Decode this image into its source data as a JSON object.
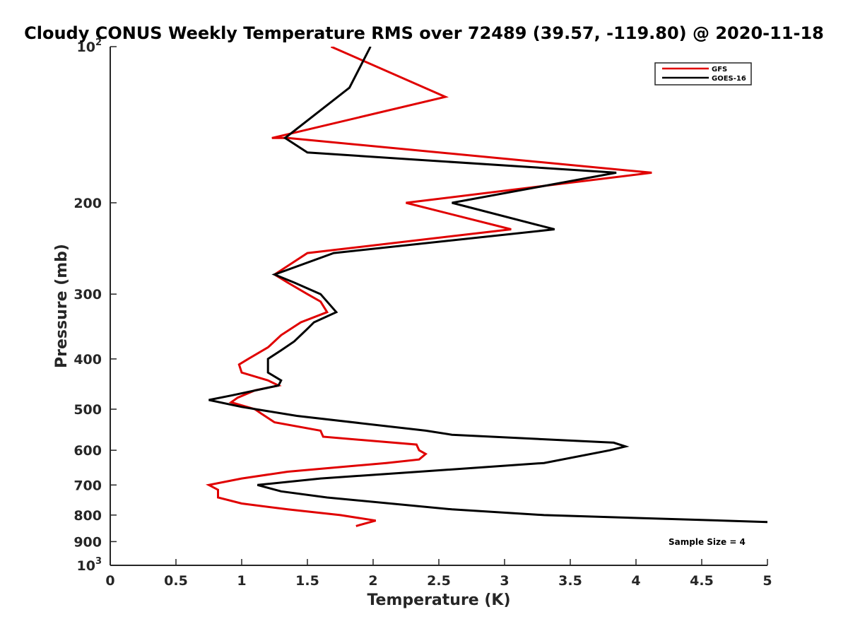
{
  "chart_data": {
    "type": "line",
    "title": "Cloudy CONUS Weekly Temperature RMS over 72489 (39.57, -119.80) @ 2020-11-18",
    "xlabel": "Temperature (K)",
    "ylabel": "Pressure (mb)",
    "xlim": [
      0,
      5
    ],
    "ylim": [
      100,
      1000
    ],
    "y_scale": "log",
    "y_reversed": true,
    "x_ticks": [
      "0",
      "0.5",
      "1",
      "1.5",
      "2",
      "2.5",
      "3",
      "3.5",
      "4",
      "4.5",
      "5"
    ],
    "x_tick_values": [
      0,
      0.5,
      1,
      1.5,
      2,
      2.5,
      3,
      3.5,
      4,
      4.5,
      5
    ],
    "y_ticks": [
      {
        "value": 100,
        "base": "10",
        "exp": "2"
      },
      {
        "value": 200,
        "label": "200"
      },
      {
        "value": 300,
        "label": "300"
      },
      {
        "value": 400,
        "label": "400"
      },
      {
        "value": 500,
        "label": "500"
      },
      {
        "value": 600,
        "label": "600"
      },
      {
        "value": 700,
        "label": "700"
      },
      {
        "value": 800,
        "label": "800"
      },
      {
        "value": 900,
        "label": "900"
      },
      {
        "value": 1000,
        "base": "10",
        "exp": "3"
      }
    ],
    "legend_position": "top-right",
    "annotation": "Sample Size = 4",
    "grid": false,
    "series": [
      {
        "name": "GFS",
        "color": "#e00000",
        "points": [
          [
            1.68,
            100
          ],
          [
            2.55,
            125
          ],
          [
            1.23,
            150
          ],
          [
            1.35,
            150
          ],
          [
            4.12,
            175
          ],
          [
            2.25,
            200
          ],
          [
            3.05,
            225
          ],
          [
            1.5,
            250
          ],
          [
            1.25,
            275
          ],
          [
            1.35,
            285
          ],
          [
            1.5,
            300
          ],
          [
            1.6,
            310
          ],
          [
            1.65,
            325
          ],
          [
            1.45,
            340
          ],
          [
            1.3,
            360
          ],
          [
            1.2,
            380
          ],
          [
            1.05,
            400
          ],
          [
            0.98,
            410
          ],
          [
            1.0,
            425
          ],
          [
            1.2,
            440
          ],
          [
            1.28,
            450
          ],
          [
            1.1,
            460
          ],
          [
            0.97,
            475
          ],
          [
            0.92,
            485
          ],
          [
            1.1,
            500
          ],
          [
            1.15,
            510
          ],
          [
            1.25,
            530
          ],
          [
            1.6,
            550
          ],
          [
            1.62,
            565
          ],
          [
            2.33,
            585
          ],
          [
            2.35,
            600
          ],
          [
            2.4,
            610
          ],
          [
            2.35,
            625
          ],
          [
            2.1,
            635
          ],
          [
            1.35,
            660
          ],
          [
            1.0,
            680
          ],
          [
            0.75,
            700
          ],
          [
            0.82,
            715
          ],
          [
            0.82,
            740
          ],
          [
            1.0,
            760
          ],
          [
            1.35,
            780
          ],
          [
            1.75,
            800
          ],
          [
            2.02,
            820
          ],
          [
            1.87,
            840
          ]
        ]
      },
      {
        "name": "GOES-16",
        "color": "#000000",
        "points": [
          [
            1.98,
            100
          ],
          [
            1.82,
            120
          ],
          [
            1.33,
            150
          ],
          [
            1.5,
            160
          ],
          [
            2.3,
            165
          ],
          [
            3.85,
            175
          ],
          [
            2.6,
            200
          ],
          [
            3.38,
            225
          ],
          [
            1.7,
            250
          ],
          [
            1.25,
            275
          ],
          [
            1.4,
            285
          ],
          [
            1.6,
            300
          ],
          [
            1.72,
            325
          ],
          [
            1.55,
            340
          ],
          [
            1.5,
            350
          ],
          [
            1.4,
            370
          ],
          [
            1.3,
            385
          ],
          [
            1.2,
            400
          ],
          [
            1.2,
            425
          ],
          [
            1.3,
            440
          ],
          [
            1.28,
            450
          ],
          [
            0.93,
            470
          ],
          [
            0.75,
            480
          ],
          [
            1.0,
            495
          ],
          [
            1.42,
            515
          ],
          [
            2.4,
            550
          ],
          [
            2.6,
            560
          ],
          [
            3.83,
            580
          ],
          [
            3.92,
            590
          ],
          [
            3.8,
            600
          ],
          [
            3.3,
            635
          ],
          [
            2.35,
            660
          ],
          [
            1.6,
            680
          ],
          [
            1.12,
            700
          ],
          [
            1.3,
            720
          ],
          [
            1.65,
            740
          ],
          [
            2.6,
            780
          ],
          [
            3.3,
            800
          ],
          [
            5.0,
            825
          ]
        ]
      }
    ]
  }
}
